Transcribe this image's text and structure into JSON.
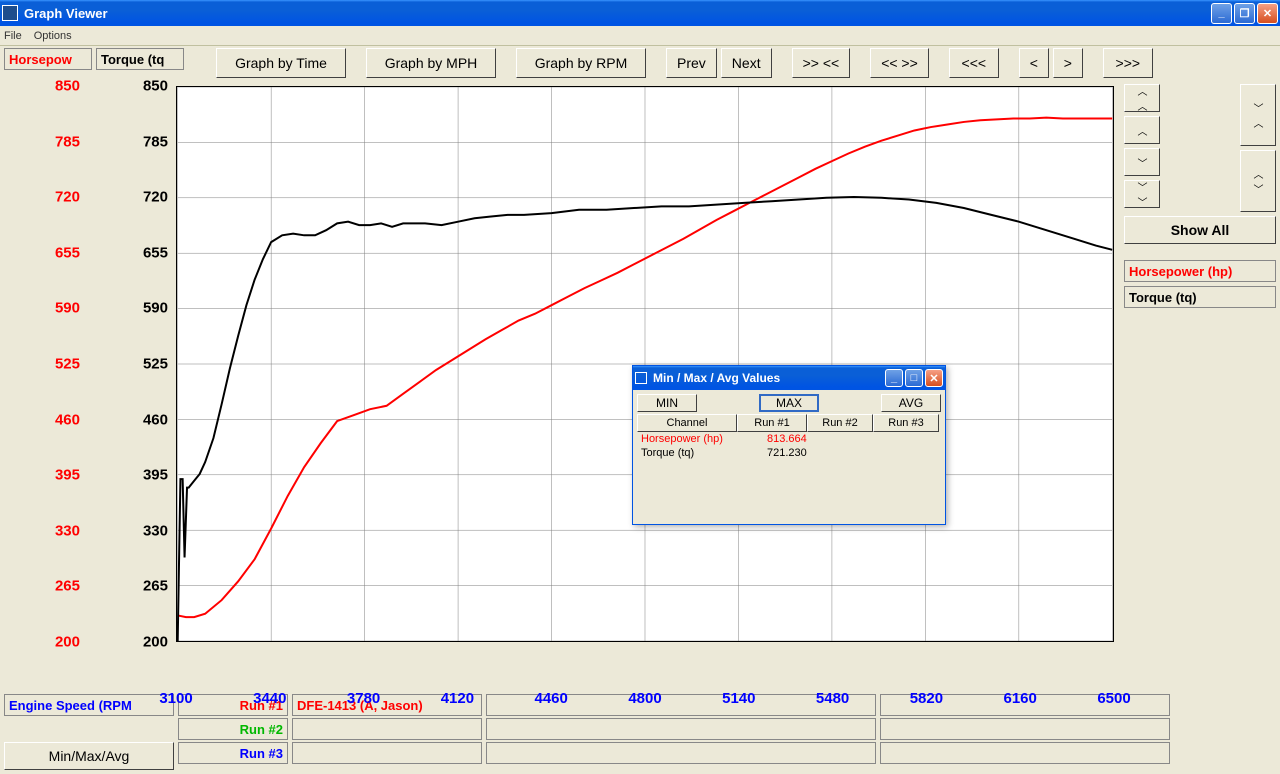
{
  "window": {
    "title": "Graph Viewer"
  },
  "menubar": [
    "File",
    "Options"
  ],
  "axis_headers": {
    "hp": "Horsepow",
    "tq": "Torque (tq"
  },
  "toolbar_buttons": {
    "by_time": "Graph by Time",
    "by_mph": "Graph by MPH",
    "by_rpm": "Graph by RPM",
    "prev": "Prev",
    "next": "Next",
    "zoom_out_in": ">> <<",
    "zoom_in_out": "<< >>",
    "rewind": "<<<",
    "left": "<",
    "right": ">",
    "fwd": ">>>"
  },
  "right_panel": {
    "show_all": "Show All",
    "series_hp": "Horsepower (hp)",
    "series_tq": "Torque (tq)"
  },
  "chart": {
    "type": "line",
    "background_color": "#ffffff",
    "grid_color": "#808080",
    "x": {
      "min": 3100,
      "max": 6500,
      "ticks": [
        3100,
        3440,
        3780,
        4120,
        4460,
        4800,
        5140,
        5480,
        5820,
        6160,
        6500
      ],
      "tick_color": "#0000ff",
      "tick_fontsize": 15,
      "tick_fontweight": "bold"
    },
    "y": {
      "min": 200,
      "max": 850,
      "ticks": [
        200,
        265,
        330,
        395,
        460,
        525,
        590,
        655,
        720,
        785,
        850
      ],
      "tick_fontsize": 15,
      "tick_fontweight": "bold"
    },
    "series": [
      {
        "name": "Horsepower (hp)",
        "color": "#ff0000",
        "width": 2,
        "points": [
          [
            3100,
            230
          ],
          [
            3130,
            228
          ],
          [
            3160,
            228
          ],
          [
            3200,
            232
          ],
          [
            3260,
            248
          ],
          [
            3320,
            270
          ],
          [
            3380,
            296
          ],
          [
            3440,
            332
          ],
          [
            3500,
            370
          ],
          [
            3560,
            404
          ],
          [
            3620,
            432
          ],
          [
            3680,
            458
          ],
          [
            3740,
            465
          ],
          [
            3800,
            472
          ],
          [
            3860,
            476
          ],
          [
            3920,
            490
          ],
          [
            3980,
            504
          ],
          [
            4040,
            518
          ],
          [
            4100,
            530
          ],
          [
            4160,
            542
          ],
          [
            4220,
            554
          ],
          [
            4280,
            565
          ],
          [
            4340,
            576
          ],
          [
            4400,
            584
          ],
          [
            4460,
            594
          ],
          [
            4520,
            604
          ],
          [
            4580,
            614
          ],
          [
            4640,
            623
          ],
          [
            4700,
            632
          ],
          [
            4760,
            642
          ],
          [
            4820,
            652
          ],
          [
            4880,
            662
          ],
          [
            4940,
            672
          ],
          [
            5000,
            683
          ],
          [
            5060,
            694
          ],
          [
            5120,
            704
          ],
          [
            5180,
            714
          ],
          [
            5240,
            724
          ],
          [
            5300,
            734
          ],
          [
            5360,
            744
          ],
          [
            5420,
            754
          ],
          [
            5480,
            763
          ],
          [
            5540,
            772
          ],
          [
            5600,
            780
          ],
          [
            5660,
            787
          ],
          [
            5720,
            793
          ],
          [
            5780,
            799
          ],
          [
            5840,
            803
          ],
          [
            5900,
            806
          ],
          [
            5960,
            809
          ],
          [
            6020,
            811
          ],
          [
            6080,
            812
          ],
          [
            6140,
            813
          ],
          [
            6200,
            813
          ],
          [
            6260,
            814
          ],
          [
            6320,
            813
          ],
          [
            6380,
            813
          ],
          [
            6440,
            813
          ],
          [
            6500,
            813
          ]
        ]
      },
      {
        "name": "Torque (tq)",
        "color": "#000000",
        "width": 2,
        "points": [
          [
            3100,
            200
          ],
          [
            3110,
            390
          ],
          [
            3118,
            390
          ],
          [
            3125,
            298
          ],
          [
            3134,
            380
          ],
          [
            3140,
            380
          ],
          [
            3160,
            388
          ],
          [
            3180,
            396
          ],
          [
            3200,
            410
          ],
          [
            3230,
            438
          ],
          [
            3260,
            478
          ],
          [
            3290,
            520
          ],
          [
            3320,
            558
          ],
          [
            3350,
            594
          ],
          [
            3380,
            624
          ],
          [
            3410,
            648
          ],
          [
            3440,
            668
          ],
          [
            3480,
            676
          ],
          [
            3520,
            678
          ],
          [
            3560,
            676
          ],
          [
            3600,
            676
          ],
          [
            3640,
            682
          ],
          [
            3680,
            690
          ],
          [
            3720,
            692
          ],
          [
            3760,
            688
          ],
          [
            3800,
            688
          ],
          [
            3840,
            690
          ],
          [
            3880,
            686
          ],
          [
            3920,
            690
          ],
          [
            3960,
            690
          ],
          [
            4000,
            690
          ],
          [
            4060,
            688
          ],
          [
            4120,
            692
          ],
          [
            4180,
            696
          ],
          [
            4240,
            698
          ],
          [
            4300,
            700
          ],
          [
            4360,
            700
          ],
          [
            4460,
            702
          ],
          [
            4560,
            706
          ],
          [
            4660,
            706
          ],
          [
            4760,
            708
          ],
          [
            4860,
            710
          ],
          [
            4960,
            710
          ],
          [
            5060,
            712
          ],
          [
            5160,
            714
          ],
          [
            5260,
            716
          ],
          [
            5360,
            718
          ],
          [
            5460,
            720
          ],
          [
            5560,
            721
          ],
          [
            5660,
            720
          ],
          [
            5760,
            718
          ],
          [
            5860,
            714
          ],
          [
            5960,
            708
          ],
          [
            6060,
            700
          ],
          [
            6160,
            692
          ],
          [
            6260,
            682
          ],
          [
            6360,
            672
          ],
          [
            6440,
            664
          ],
          [
            6500,
            659
          ]
        ]
      }
    ]
  },
  "bottom": {
    "engine_speed": "Engine Speed (RPM",
    "minmaxavg": "Min/Max/Avg",
    "run_labels": [
      "Run #1",
      "Run #2",
      "Run #3"
    ],
    "run_colors": [
      "#ff0000",
      "#00b800",
      "#0000ff"
    ],
    "dfe": "DFE-1413 (A, Jason)"
  },
  "dialog": {
    "title": "Min / Max / Avg Values",
    "buttons": {
      "min": "MIN",
      "max": "MAX",
      "avg": "AVG"
    },
    "columns": [
      "Channel",
      "Run #1",
      "Run #2",
      "Run #3"
    ],
    "rows": [
      {
        "label": "Horsepower (hp)",
        "color": "#ff0000",
        "run1": "813.664"
      },
      {
        "label": "Torque (tq)",
        "color": "#000000",
        "run1": "721.230"
      }
    ]
  }
}
